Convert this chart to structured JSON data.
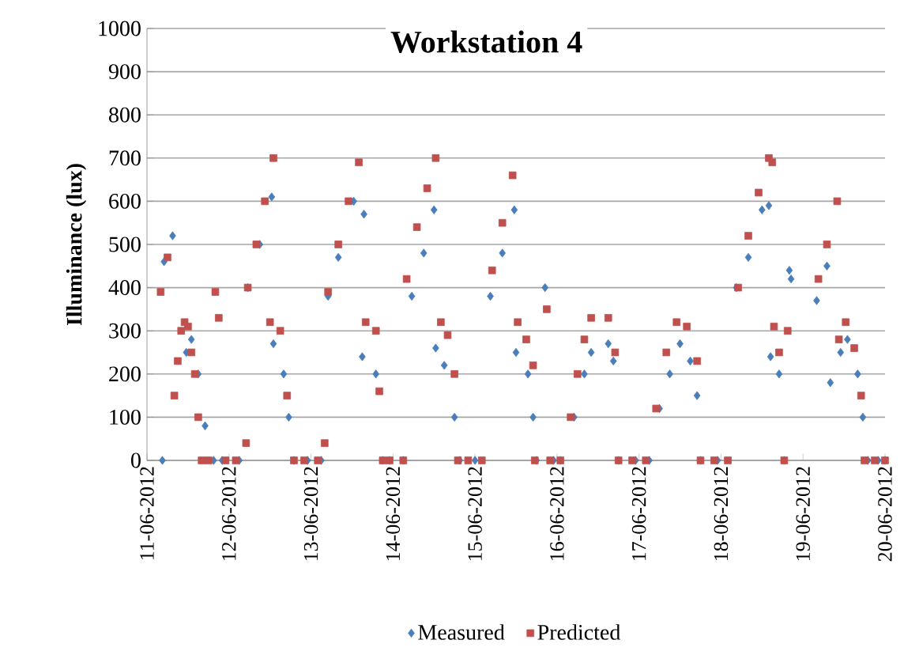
{
  "chart_data": {
    "type": "scatter",
    "title": "Workstation 4",
    "ylabel": "Illuminance (lux)",
    "xlim": [
      "2012-06-11",
      "2012-06-20"
    ],
    "xticks": [
      {
        "value": "2012-06-11",
        "label": "11-06-2012"
      },
      {
        "value": "2012-06-12",
        "label": "12-06-2012"
      },
      {
        "value": "2012-06-13",
        "label": "13-06-2012"
      },
      {
        "value": "2012-06-14",
        "label": "14-06-2012"
      },
      {
        "value": "2012-06-15",
        "label": "15-06-2012"
      },
      {
        "value": "2012-06-16",
        "label": "16-06-2012"
      },
      {
        "value": "2012-06-17",
        "label": "17-06-2012"
      },
      {
        "value": "2012-06-18",
        "label": "18-06-2012"
      },
      {
        "value": "2012-06-19",
        "label": "19-06-2012"
      },
      {
        "value": "2012-06-20",
        "label": "20-06-2012"
      }
    ],
    "ylim": [
      0,
      1000
    ],
    "yticks": [
      0,
      100,
      200,
      300,
      400,
      500,
      600,
      700,
      800,
      900,
      1000
    ],
    "grid": "y",
    "legend": "bottom",
    "series": [
      {
        "name": "Measured",
        "color": "#4a7ebb",
        "marker": "diamond",
        "x": [
          "2012-06-11T04:30",
          "2012-06-11T05:00",
          "2012-06-11T07:30",
          "2012-06-11T11:30",
          "2012-06-11T13:00",
          "2012-06-11T15:00",
          "2012-06-11T17:00",
          "2012-06-11T19:30",
          "2012-06-11T22:00",
          "2012-06-12T03:00",
          "2012-06-12T05:30",
          "2012-06-12T09:00",
          "2012-06-12T12:30",
          "2012-06-12T13:00",
          "2012-06-12T16:00",
          "2012-06-12T17:30",
          "2012-06-12T19:00",
          "2012-06-12T23:00",
          "2012-06-13T03:00",
          "2012-06-13T05:00",
          "2012-06-13T08:00",
          "2012-06-13T12:30",
          "2012-06-13T15:30",
          "2012-06-13T15:00",
          "2012-06-13T19:00",
          "2012-06-13T21:00",
          "2012-06-13T23:00",
          "2012-06-14T03:00",
          "2012-06-14T05:30",
          "2012-06-14T09:00",
          "2012-06-14T12:00",
          "2012-06-14T12:30",
          "2012-06-14T15:00",
          "2012-06-14T18:00",
          "2012-06-14T19:30",
          "2012-06-15T00:00",
          "2012-06-15T04:30",
          "2012-06-15T08:00",
          "2012-06-15T11:30",
          "2012-06-15T12:00",
          "2012-06-15T15:30",
          "2012-06-15T17:00",
          "2012-06-15T18:00",
          "2012-06-15T20:30",
          "2012-06-15T23:00",
          "2012-06-16T01:00",
          "2012-06-16T05:00",
          "2012-06-16T08:00",
          "2012-06-16T10:00",
          "2012-06-16T15:00",
          "2012-06-16T16:30",
          "2012-06-16T18:00",
          "2012-06-16T23:00",
          "2012-06-17T03:00",
          "2012-06-17T06:00",
          "2012-06-17T09:00",
          "2012-06-17T12:00",
          "2012-06-17T15:00",
          "2012-06-17T17:00",
          "2012-06-17T18:00",
          "2012-06-17T23:00",
          "2012-06-18T04:30",
          "2012-06-18T08:00",
          "2012-06-18T12:00",
          "2012-06-18T14:00",
          "2012-06-18T14:30",
          "2012-06-18T17:00",
          "2012-06-18T18:30",
          "2012-06-18T20:00",
          "2012-06-18T20:30",
          "2012-06-19T04:00",
          "2012-06-19T07:00",
          "2012-06-19T08:00",
          "2012-06-19T11:00",
          "2012-06-19T13:00",
          "2012-06-19T16:00",
          "2012-06-19T17:30",
          "2012-06-19T19:00",
          "2012-06-19T22:00",
          "2012-06-20T00:00"
        ],
        "values": [
          0,
          460,
          520,
          250,
          280,
          200,
          80,
          0,
          0,
          0,
          400,
          500,
          610,
          270,
          200,
          100,
          0,
          0,
          0,
          380,
          470,
          600,
          570,
          240,
          200,
          0,
          0,
          0,
          380,
          480,
          580,
          260,
          220,
          100,
          0,
          0,
          380,
          480,
          580,
          250,
          200,
          100,
          0,
          400,
          0,
          0,
          100,
          200,
          250,
          270,
          230,
          0,
          0,
          0,
          120,
          200,
          270,
          230,
          150,
          0,
          0,
          400,
          470,
          580,
          590,
          240,
          200,
          0,
          440,
          420,
          370,
          450,
          180,
          250,
          280,
          200,
          100,
          0,
          0,
          0
        ]
      },
      {
        "name": "Predicted",
        "color": "#c0504d",
        "marker": "square",
        "x": [
          "2012-06-11T04:00",
          "2012-06-11T06:00",
          "2012-06-11T08:00",
          "2012-06-11T09:00",
          "2012-06-11T10:00",
          "2012-06-11T11:00",
          "2012-06-11T12:00",
          "2012-06-11T13:00",
          "2012-06-11T14:00",
          "2012-06-11T15:00",
          "2012-06-11T16:00",
          "2012-06-11T18:00",
          "2012-06-11T20:00",
          "2012-06-11T21:00",
          "2012-06-11T23:00",
          "2012-06-12T02:00",
          "2012-06-12T05:00",
          "2012-06-12T05:30",
          "2012-06-12T08:00",
          "2012-06-12T10:30",
          "2012-06-12T13:00",
          "2012-06-12T12:00",
          "2012-06-12T15:00",
          "2012-06-12T17:00",
          "2012-06-12T19:00",
          "2012-06-12T22:00",
          "2012-06-13T02:00",
          "2012-06-13T04:00",
          "2012-06-13T05:00",
          "2012-06-13T08:00",
          "2012-06-13T11:00",
          "2012-06-13T14:00",
          "2012-06-13T16:00",
          "2012-06-13T19:00",
          "2012-06-13T20:00",
          "2012-06-13T21:00",
          "2012-06-13T23:00",
          "2012-06-14T03:00",
          "2012-06-14T04:00",
          "2012-06-14T07:00",
          "2012-06-14T10:00",
          "2012-06-14T12:30",
          "2012-06-14T14:00",
          "2012-06-14T16:00",
          "2012-06-14T18:00",
          "2012-06-14T19:00",
          "2012-06-14T22:00",
          "2012-06-15T02:00",
          "2012-06-15T05:00",
          "2012-06-15T08:00",
          "2012-06-15T11:00",
          "2012-06-15T12:30",
          "2012-06-15T15:00",
          "2012-06-15T17:00",
          "2012-06-15T17:30",
          "2012-06-15T21:00",
          "2012-06-15T22:00",
          "2012-06-16T01:00",
          "2012-06-16T04:00",
          "2012-06-16T06:00",
          "2012-06-16T08:00",
          "2012-06-16T10:00",
          "2012-06-16T15:00",
          "2012-06-16T17:00",
          "2012-06-16T18:00",
          "2012-06-16T22:00",
          "2012-06-17T02:00",
          "2012-06-17T05:00",
          "2012-06-17T08:00",
          "2012-06-17T11:00",
          "2012-06-17T14:00",
          "2012-06-17T17:00",
          "2012-06-17T18:00",
          "2012-06-17T22:00",
          "2012-06-18T02:00",
          "2012-06-18T05:00",
          "2012-06-18T08:00",
          "2012-06-18T11:00",
          "2012-06-18T14:00",
          "2012-06-18T15:00",
          "2012-06-18T15:30",
          "2012-06-18T17:00",
          "2012-06-18T18:30",
          "2012-06-18T19:30",
          "2012-06-19T04:30",
          "2012-06-19T07:00",
          "2012-06-19T10:00",
          "2012-06-19T10:30",
          "2012-06-19T12:30",
          "2012-06-19T15:00",
          "2012-06-19T17:00",
          "2012-06-19T18:00",
          "2012-06-19T21:00",
          "2012-06-20T00:00"
        ],
        "values": [
          390,
          470,
          150,
          230,
          300,
          320,
          310,
          250,
          200,
          100,
          0,
          0,
          390,
          330,
          0,
          0,
          40,
          400,
          500,
          600,
          700,
          320,
          300,
          150,
          0,
          0,
          0,
          40,
          390,
          500,
          600,
          690,
          320,
          300,
          160,
          0,
          0,
          0,
          420,
          540,
          630,
          700,
          320,
          290,
          200,
          0,
          0,
          0,
          440,
          550,
          660,
          320,
          280,
          220,
          0,
          350,
          0,
          0,
          100,
          200,
          280,
          330,
          330,
          250,
          0,
          0,
          0,
          120,
          250,
          320,
          310,
          230,
          0,
          0,
          0,
          400,
          520,
          620,
          700,
          690,
          310,
          250,
          0,
          300,
          420,
          500,
          600,
          280,
          320,
          260,
          150,
          0,
          0,
          0
        ]
      }
    ]
  }
}
